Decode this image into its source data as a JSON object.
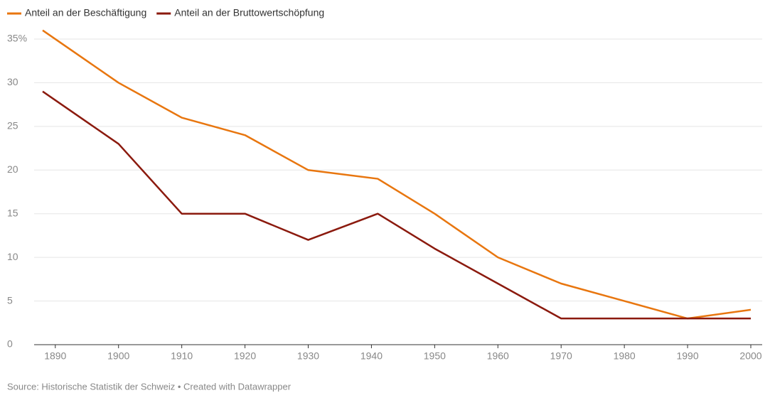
{
  "chart_data": {
    "type": "line",
    "x": [
      1888,
      1900,
      1910,
      1920,
      1930,
      1941,
      1950,
      1960,
      1970,
      1980,
      1990,
      2000
    ],
    "series": [
      {
        "name": "Anteil an der Beschäftigung",
        "color": "#e8760f",
        "values": [
          36,
          30,
          26,
          24,
          20,
          19,
          15,
          10,
          7,
          5,
          3,
          4
        ]
      },
      {
        "name": "Anteil an der Bruttowertschöpfung",
        "color": "#8b1a0e",
        "values": [
          29,
          23,
          15,
          15,
          12,
          15,
          11,
          7,
          3,
          3,
          3,
          3
        ]
      }
    ],
    "xlim": [
      1888,
      2000
    ],
    "xticks": [
      1890,
      1900,
      1910,
      1920,
      1930,
      1940,
      1950,
      1960,
      1970,
      1980,
      1990,
      2000
    ],
    "ylim": [
      0,
      35
    ],
    "yticks": [
      0,
      5,
      10,
      15,
      20,
      25,
      30,
      {
        "value": 35,
        "label": "35%"
      }
    ],
    "grid": true,
    "source": "Source: Historische Statistik der Schweiz • Created with Datawrapper"
  }
}
